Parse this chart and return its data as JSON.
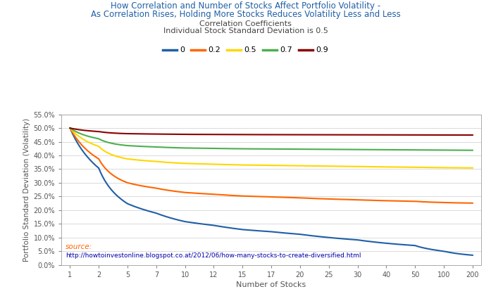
{
  "title_line1": "How Correlation and Number of Stocks Affect Portfolio Volatility -",
  "title_line2": "As Correlation Rises, Holding More Stocks Reduces Volatility Less and Less",
  "subtitle1": "Correlation Coefficients",
  "subtitle2": "Individual Stock Standard Deviation is 0.5",
  "xlabel": "Number of Stocks",
  "ylabel": "Portfolio Standard Deviation (Volatility)",
  "individual_std": 0.5,
  "correlations": [
    0,
    0.2,
    0.5,
    0.7,
    0.9
  ],
  "corr_labels": [
    "0",
    "0.2",
    "0.5",
    "0.7",
    "0.9"
  ],
  "corr_colors": [
    "#1F5FA6",
    "#FF6600",
    "#FFD700",
    "#4CAF50",
    "#8B0000"
  ],
  "x_ticks": [
    1,
    2,
    5,
    7,
    10,
    12,
    15,
    17,
    20,
    25,
    30,
    40,
    50,
    100,
    200
  ],
  "ylim": [
    0.0,
    0.55
  ],
  "ytick_step": 0.05,
  "source_text": "source:",
  "source_url": "http://howtoinvestonline.blogspot.co.at/2012/06/how-many-stocks-to-create-diversified.html",
  "title_color": "#1F5FA6",
  "subtitle_color": "#555555",
  "source_color": "#FF6600",
  "url_color": "#0000AA",
  "background_color": "#FFFFFF",
  "grid_color": "#CCCCCC",
  "axis_color": "#AAAAAA"
}
